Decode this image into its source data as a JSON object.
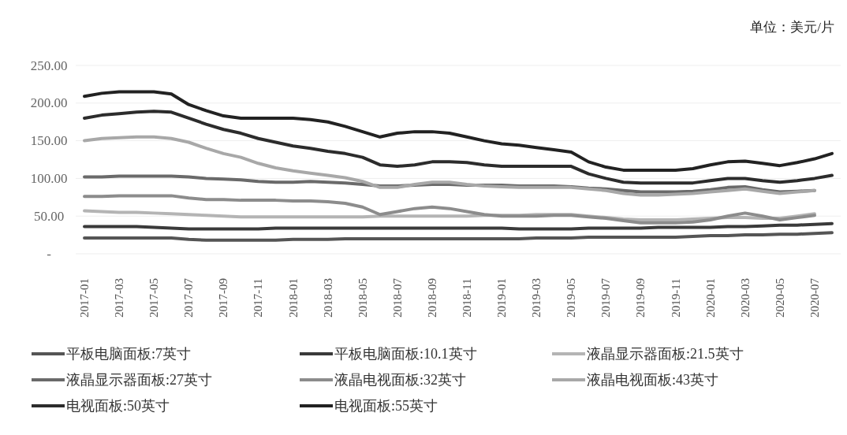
{
  "chart_data": {
    "type": "line",
    "annotations": [
      "单位：美元/片"
    ],
    "categories": [
      "2017-01",
      null,
      "2017-03",
      null,
      "2017-05",
      null,
      "2017-07",
      null,
      "2017-09",
      null,
      "2017-11",
      null,
      "2018-01",
      null,
      "2018-03",
      null,
      "2018-05",
      null,
      "2018-07",
      null,
      "2018-09",
      null,
      "2018-11",
      null,
      "2019-01",
      null,
      "2019-03",
      null,
      "2019-05",
      null,
      "2019-07",
      null,
      "2019-09",
      null,
      "2019-11",
      null,
      "2020-01",
      null,
      "2020-03",
      null,
      "2020-05",
      null,
      "2020-07",
      null
    ],
    "ylim": [
      0,
      250
    ],
    "yticks": [
      {
        "value": 0,
        "label": "-"
      },
      {
        "value": 50,
        "label": "50.00"
      },
      {
        "value": 100,
        "label": "100.00"
      },
      {
        "value": 150,
        "label": "150.00"
      },
      {
        "value": 200,
        "label": "200.00"
      },
      {
        "value": 250,
        "label": "250.00"
      }
    ],
    "grid": "y",
    "legend": "bottom",
    "line_style": "solid",
    "marker": "none",
    "series": [
      {
        "name": "平板电脑面板:7英寸",
        "color": "#555555",
        "values": [
          21,
          21,
          21,
          21,
          21,
          21,
          19,
          18,
          18,
          18,
          18,
          18,
          19,
          19,
          19,
          20,
          20,
          20,
          20,
          20,
          20,
          20,
          20,
          20,
          20,
          20,
          21,
          21,
          21,
          22,
          22,
          22,
          22,
          22,
          22,
          23,
          24,
          24,
          25,
          25,
          26,
          26,
          27,
          28
        ]
      },
      {
        "name": "平板电脑面板:10.1英寸",
        "color": "#3a3a3a",
        "values": [
          36,
          36,
          36,
          36,
          35,
          34,
          33,
          33,
          33,
          33,
          33,
          34,
          34,
          34,
          34,
          34,
          34,
          34,
          34,
          34,
          34,
          34,
          34,
          34,
          34,
          33,
          33,
          33,
          33,
          34,
          34,
          34,
          34,
          35,
          35,
          35,
          35,
          36,
          36,
          37,
          38,
          38,
          39,
          40
        ]
      },
      {
        "name": "液晶显示器面板:21.5英寸",
        "color": "#b4b4b4",
        "values": [
          57,
          56,
          55,
          55,
          54,
          53,
          52,
          51,
          50,
          49,
          49,
          49,
          49,
          49,
          49,
          49,
          49,
          50,
          50,
          50,
          50,
          50,
          50,
          51,
          51,
          51,
          52,
          52,
          52,
          50,
          48,
          46,
          45,
          45,
          45,
          46,
          47,
          48,
          48,
          47,
          47,
          50,
          53,
          null
        ]
      },
      {
        "name": "液晶显示器面板:27英寸",
        "color": "#6a6a6a",
        "values": [
          102,
          102,
          103,
          103,
          103,
          103,
          102,
          100,
          99,
          98,
          96,
          95,
          95,
          96,
          95,
          94,
          92,
          90,
          90,
          91,
          92,
          92,
          91,
          91,
          91,
          90,
          90,
          90,
          89,
          87,
          86,
          84,
          82,
          82,
          82,
          83,
          85,
          88,
          89,
          85,
          82,
          83,
          84,
          null
        ]
      },
      {
        "name": "液晶电视面板:32英寸",
        "color": "#8c8c8c",
        "values": [
          76,
          76,
          77,
          77,
          77,
          77,
          74,
          72,
          72,
          71,
          71,
          71,
          70,
          70,
          69,
          67,
          62,
          52,
          56,
          60,
          62,
          60,
          56,
          52,
          50,
          50,
          50,
          51,
          51,
          49,
          47,
          44,
          41,
          41,
          41,
          42,
          45,
          50,
          54,
          50,
          45,
          48,
          51,
          null
        ]
      },
      {
        "name": "液晶电视面板:43英寸",
        "color": "#a8a8a8",
        "values": [
          150,
          153,
          154,
          155,
          155,
          153,
          148,
          140,
          133,
          128,
          120,
          114,
          110,
          107,
          104,
          101,
          96,
          88,
          88,
          92,
          95,
          95,
          92,
          90,
          89,
          88,
          88,
          88,
          88,
          86,
          84,
          80,
          78,
          78,
          79,
          80,
          82,
          84,
          86,
          83,
          80,
          82,
          84,
          null
        ]
      },
      {
        "name": "电视面板:50英寸",
        "color": "#2c2c2c",
        "values": [
          180,
          184,
          186,
          188,
          189,
          188,
          180,
          172,
          165,
          160,
          153,
          148,
          143,
          140,
          136,
          133,
          128,
          118,
          116,
          118,
          122,
          122,
          121,
          118,
          116,
          116,
          116,
          116,
          116,
          106,
          100,
          95,
          94,
          94,
          94,
          94,
          97,
          100,
          100,
          97,
          95,
          97,
          100,
          104
        ]
      },
      {
        "name": "电视面板:55英寸",
        "color": "#222222",
        "values": [
          209,
          213,
          215,
          215,
          215,
          212,
          198,
          190,
          183,
          180,
          180,
          180,
          180,
          178,
          175,
          169,
          162,
          155,
          160,
          162,
          162,
          160,
          155,
          150,
          146,
          144,
          141,
          138,
          135,
          122,
          115,
          111,
          111,
          111,
          111,
          113,
          118,
          122,
          123,
          120,
          117,
          121,
          126,
          133
        ]
      }
    ]
  }
}
